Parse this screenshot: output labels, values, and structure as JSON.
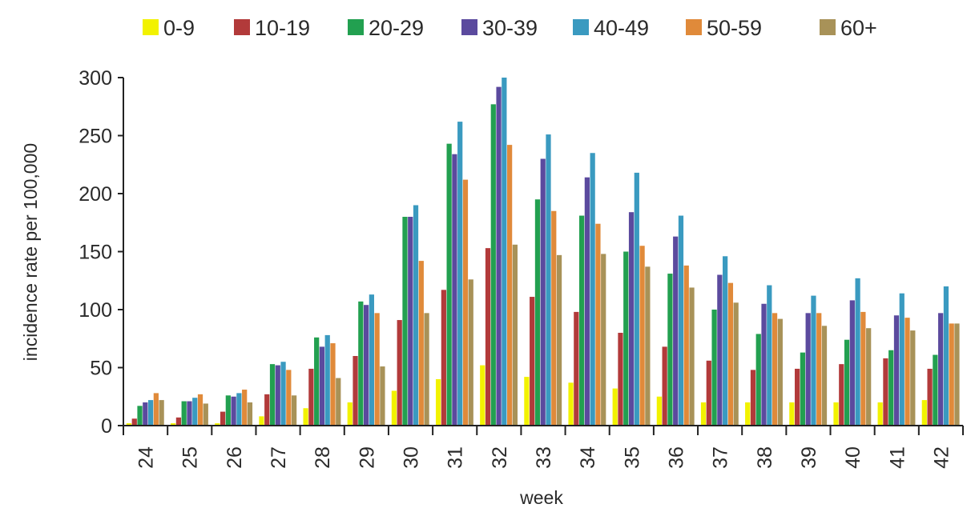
{
  "chart_data": {
    "type": "bar",
    "xlabel": "week",
    "ylabel": "incidence rate per 100,000",
    "ylim": [
      0,
      300
    ],
    "yticks": [
      "0",
      "50",
      "100",
      "150",
      "200",
      "250",
      "300"
    ],
    "grid": false,
    "legend_position": "top",
    "categories": [
      "24",
      "25",
      "26",
      "27",
      "28",
      "29",
      "30",
      "31",
      "32",
      "33",
      "34",
      "35",
      "36",
      "37",
      "38",
      "39",
      "40",
      "41",
      "42"
    ],
    "series": [
      {
        "name": "0-9",
        "color": "#f2f200",
        "values": [
          2,
          2,
          2,
          8,
          15,
          20,
          30,
          40,
          52,
          42,
          37,
          32,
          25,
          20,
          20,
          20,
          20,
          20,
          22
        ]
      },
      {
        "name": "10-19",
        "color": "#b23a3a",
        "values": [
          6,
          7,
          12,
          27,
          49,
          60,
          91,
          117,
          153,
          111,
          98,
          80,
          68,
          56,
          48,
          49,
          53,
          58,
          49
        ]
      },
      {
        "name": "20-29",
        "color": "#22a050",
        "values": [
          17,
          21,
          26,
          53,
          76,
          107,
          180,
          243,
          277,
          195,
          181,
          150,
          131,
          100,
          79,
          63,
          74,
          65,
          61
        ]
      },
      {
        "name": "30-39",
        "color": "#5b4a9e",
        "values": [
          20,
          21,
          25,
          52,
          68,
          104,
          180,
          234,
          292,
          230,
          214,
          184,
          163,
          130,
          105,
          97,
          108,
          95,
          97
        ]
      },
      {
        "name": "40-49",
        "color": "#3a9ac0",
        "values": [
          22,
          24,
          28,
          55,
          78,
          113,
          190,
          262,
          300,
          251,
          235,
          218,
          181,
          146,
          121,
          112,
          127,
          114,
          120
        ]
      },
      {
        "name": "50-59",
        "color": "#e08a3a",
        "values": [
          28,
          27,
          31,
          48,
          71,
          97,
          142,
          212,
          242,
          185,
          174,
          155,
          138,
          123,
          97,
          97,
          98,
          93,
          88
        ]
      },
      {
        "name": "60+",
        "color": "#a89258",
        "values": [
          22,
          19,
          20,
          26,
          41,
          51,
          97,
          126,
          156,
          147,
          148,
          137,
          119,
          106,
          92,
          86,
          84,
          82,
          88
        ]
      }
    ]
  }
}
